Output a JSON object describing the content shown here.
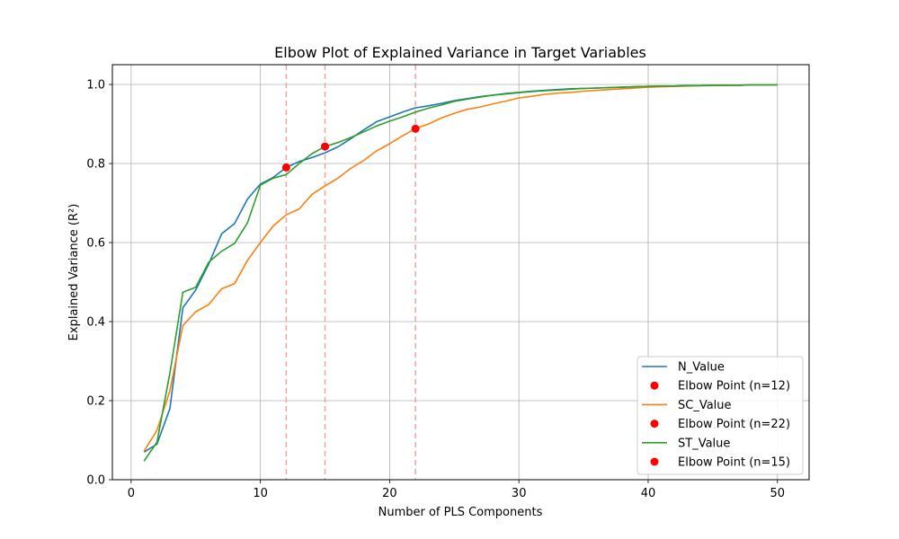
{
  "chart_data": {
    "type": "line",
    "title": "Elbow Plot of Explained Variance in Target Variables",
    "xlabel": "Number of PLS Components",
    "ylabel": "Explained Variance (R²)",
    "xlim": [
      -1.45,
      52.45
    ],
    "ylim": [
      0.0,
      1.05
    ],
    "xticks": [
      0,
      10,
      20,
      30,
      40,
      50
    ],
    "yticks": [
      0.0,
      0.2,
      0.4,
      0.6,
      0.8,
      1.0
    ],
    "grid": true,
    "legend_position": "lower right",
    "x": [
      1,
      2,
      3,
      4,
      5,
      6,
      7,
      8,
      9,
      10,
      11,
      12,
      13,
      14,
      15,
      16,
      17,
      18,
      19,
      20,
      21,
      22,
      23,
      24,
      25,
      26,
      27,
      28,
      29,
      30,
      31,
      32,
      33,
      34,
      35,
      36,
      37,
      38,
      39,
      40,
      41,
      42,
      43,
      44,
      45,
      46,
      47,
      48,
      49,
      50
    ],
    "series": [
      {
        "name": "N_Value",
        "color": "#1f77b4",
        "values": [
          0.07,
          0.09,
          0.18,
          0.435,
          0.48,
          0.545,
          0.622,
          0.648,
          0.71,
          0.748,
          0.765,
          0.79,
          0.805,
          0.815,
          0.827,
          0.842,
          0.863,
          0.885,
          0.906,
          0.918,
          0.93,
          0.941,
          0.946,
          0.952,
          0.959,
          0.964,
          0.969,
          0.973,
          0.977,
          0.98,
          0.983,
          0.985,
          0.987,
          0.989,
          0.99,
          0.991,
          0.992,
          0.993,
          0.994,
          0.995,
          0.996,
          0.996,
          0.997,
          0.997,
          0.998,
          0.998,
          0.998,
          0.999,
          0.999,
          0.999
        ],
        "elbow": {
          "x": 12,
          "y": 0.79,
          "label": "Elbow Point (n=12)"
        }
      },
      {
        "name": "SC_Value",
        "color": "#ff7f0e",
        "values": [
          0.072,
          0.125,
          0.225,
          0.39,
          0.425,
          0.443,
          0.483,
          0.496,
          0.555,
          0.6,
          0.642,
          0.67,
          0.685,
          0.722,
          0.743,
          0.763,
          0.788,
          0.808,
          0.832,
          0.85,
          0.87,
          0.888,
          0.9,
          0.915,
          0.927,
          0.937,
          0.943,
          0.951,
          0.958,
          0.966,
          0.97,
          0.975,
          0.978,
          0.98,
          0.983,
          0.985,
          0.987,
          0.989,
          0.991,
          0.993,
          0.994,
          0.995,
          0.996,
          0.997,
          0.997,
          0.998,
          0.998,
          0.999,
          0.999,
          0.999
        ],
        "elbow": {
          "x": 22,
          "y": 0.888,
          "label": "Elbow Point (n=22)"
        }
      },
      {
        "name": "ST_Value",
        "color": "#2ca02c",
        "values": [
          0.047,
          0.095,
          0.27,
          0.474,
          0.487,
          0.55,
          0.578,
          0.598,
          0.65,
          0.745,
          0.763,
          0.772,
          0.8,
          0.825,
          0.843,
          0.853,
          0.866,
          0.88,
          0.895,
          0.907,
          0.918,
          0.93,
          0.94,
          0.948,
          0.957,
          0.963,
          0.968,
          0.973,
          0.976,
          0.979,
          0.982,
          0.984,
          0.986,
          0.988,
          0.99,
          0.991,
          0.992,
          0.993,
          0.994,
          0.995,
          0.996,
          0.996,
          0.997,
          0.997,
          0.998,
          0.998,
          0.998,
          0.999,
          0.999,
          0.999
        ],
        "elbow": {
          "x": 15,
          "y": 0.843,
          "label": "Elbow Point (n=15)"
        }
      }
    ],
    "vlines": [
      12,
      15,
      22
    ],
    "vline_color": "#f4a3a3",
    "elbow_color": "#ff0000",
    "legend": [
      {
        "kind": "line",
        "series": 0,
        "label": "N_Value"
      },
      {
        "kind": "marker",
        "label": "Elbow Point (n=12)"
      },
      {
        "kind": "line",
        "series": 1,
        "label": "SC_Value"
      },
      {
        "kind": "marker",
        "label": "Elbow Point (n=22)"
      },
      {
        "kind": "line",
        "series": 2,
        "label": "ST_Value"
      },
      {
        "kind": "marker",
        "label": "Elbow Point (n=15)"
      }
    ]
  }
}
